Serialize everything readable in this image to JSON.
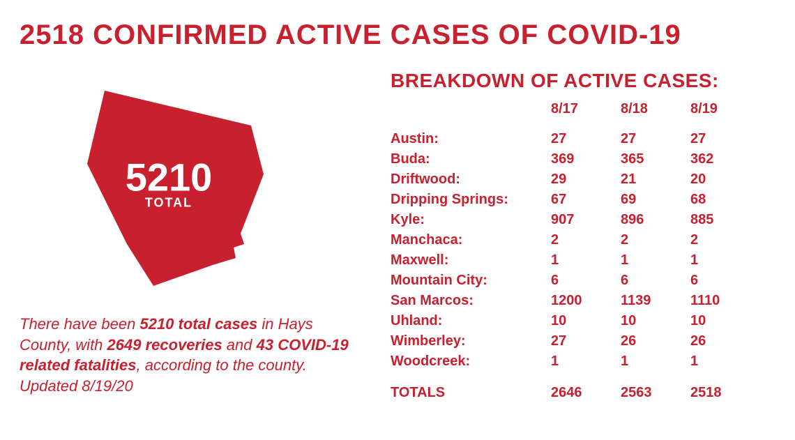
{
  "colors": {
    "brand_red": "#c8202e",
    "white": "#ffffff",
    "background": "#ffffff"
  },
  "typography": {
    "headline_fontsize": 40,
    "headline_weight": 800,
    "breakdown_title_fontsize": 28,
    "table_fontsize": 20,
    "summary_fontsize": 22,
    "county_number_fontsize": 56
  },
  "headline": "2518 CONFIRMED ACTIVE CASES OF COVID-19",
  "county_shape": {
    "total_number": "5210",
    "total_label": "TOTAL",
    "fill": "#c8202e"
  },
  "summary": {
    "prefix": "There have been ",
    "total_cases_bold": "5210 total cases",
    "mid1": " in Hays County, with ",
    "recoveries_bold": "2649 recoveries",
    "mid2": " and ",
    "fatalities_bold": "43 COVID-19 related fatalities",
    "suffix": ", according to the county. Updated 8/19/20"
  },
  "breakdown": {
    "title": "BREAKDOWN OF ACTIVE CASES:",
    "type": "table",
    "columns": [
      "",
      "8/17",
      "8/18",
      "8/19"
    ],
    "rows": [
      {
        "label": "Austin:",
        "d1": "27",
        "d2": "27",
        "d3": "27"
      },
      {
        "label": "Buda:",
        "d1": "369",
        "d2": "365",
        "d3": "362"
      },
      {
        "label": "Driftwood:",
        "d1": "29",
        "d2": "21",
        "d3": "20"
      },
      {
        "label": "Dripping Springs:",
        "d1": "67",
        "d2": "69",
        "d3": "68"
      },
      {
        "label": "Kyle:",
        "d1": "907",
        "d2": "896",
        "d3": "885"
      },
      {
        "label": "Manchaca:",
        "d1": "2",
        "d2": "2",
        "d3": "2"
      },
      {
        "label": "Maxwell:",
        "d1": "1",
        "d2": "1",
        "d3": "1"
      },
      {
        "label": "Mountain City:",
        "d1": "6",
        "d2": "6",
        "d3": "6"
      },
      {
        "label": "San Marcos:",
        "d1": "1200",
        "d2": "1139",
        "d3": "1110"
      },
      {
        "label": "Uhland:",
        "d1": "10",
        "d2": "10",
        "d3": "10"
      },
      {
        "label": "Wimberley:",
        "d1": "27",
        "d2": "26",
        "d3": "26"
      },
      {
        "label": "Woodcreek:",
        "d1": "1",
        "d2": "1",
        "d3": "1"
      }
    ],
    "totals": {
      "label": "TOTALS",
      "d1": "2646",
      "d2": "2563",
      "d3": "2518"
    }
  }
}
